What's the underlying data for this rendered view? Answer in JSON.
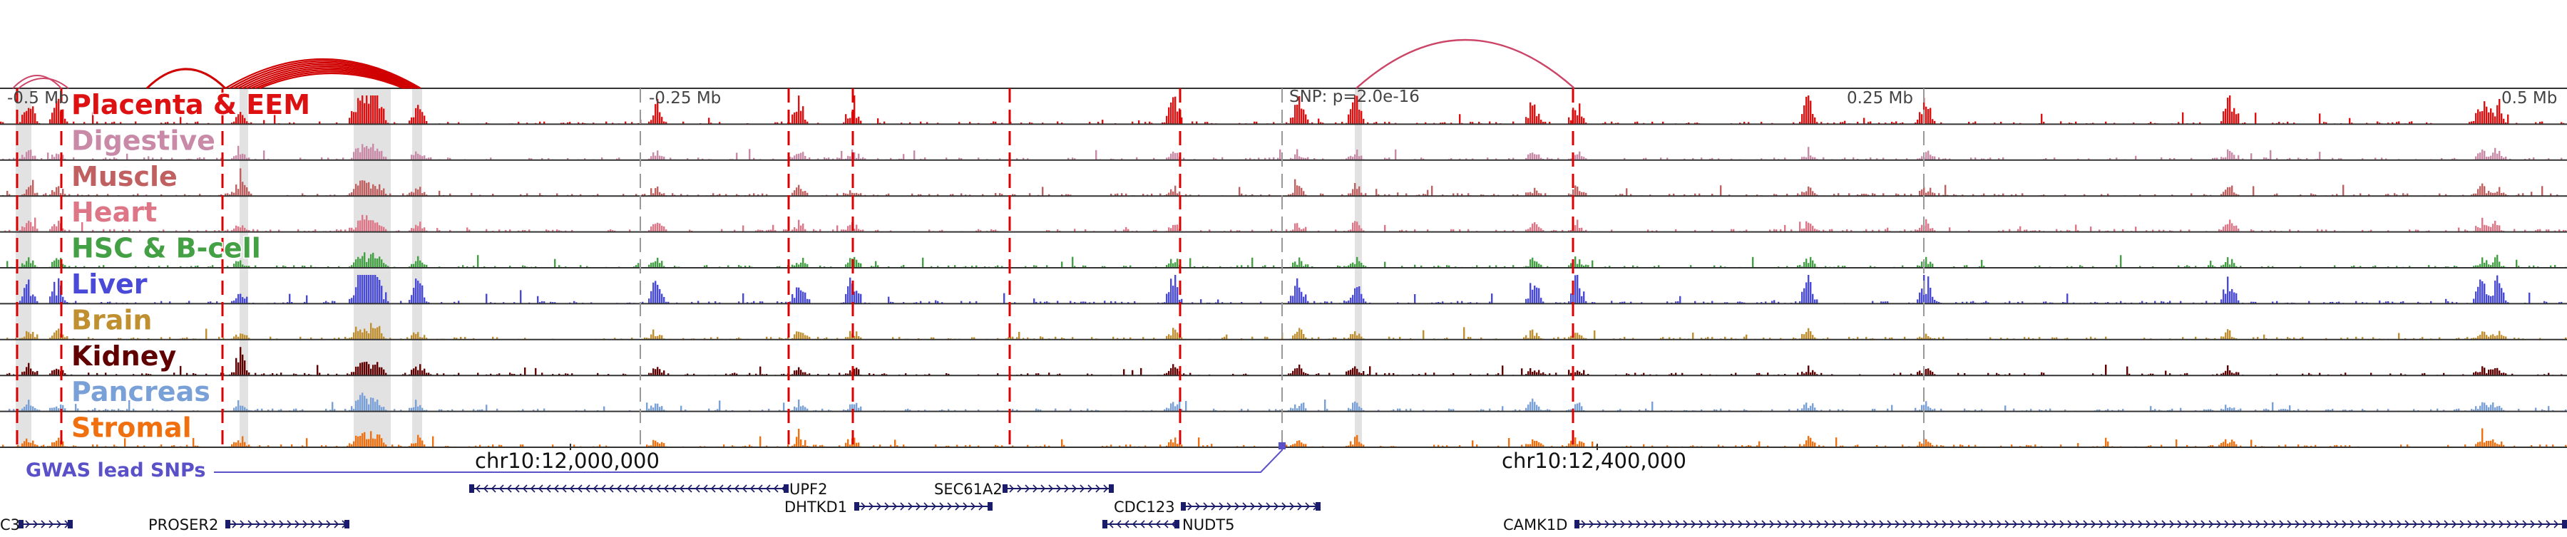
{
  "colors": {
    "line": "#333333",
    "dashed": "#dd0000",
    "dashed_gray": "#999999",
    "highlight": "#d8d8d8",
    "gwas": "#5a50c8",
    "gene": "#1b1b6b",
    "loop": "#d00000",
    "loop_light": "#cc4466"
  },
  "tracks": [
    {
      "name": "Placenta & EEM",
      "color": "#dd1111"
    },
    {
      "name": "Digestive",
      "color": "#c98aa8"
    },
    {
      "name": "Muscle",
      "color": "#c06060"
    },
    {
      "name": "Heart",
      "color": "#dd7788"
    },
    {
      "name": "HSC & B-cell",
      "color": "#44a044"
    },
    {
      "name": "Liver",
      "color": "#4a4ad8"
    },
    {
      "name": "Brain",
      "color": "#c09030"
    },
    {
      "name": "Kidney",
      "color": "#600000"
    },
    {
      "name": "Pancreas",
      "color": "#7aa0d8"
    },
    {
      "name": "Stromal",
      "color": "#f07010"
    }
  ],
  "offset_labels": [
    "-0.5 Mb",
    "-0.25 Mb",
    "0.25 Mb",
    "0.5 Mb"
  ],
  "snp_label": "SNP: p=2.0e-16",
  "coordinates": [
    "chr10:12,000,000",
    "chr10:12,400,000"
  ],
  "gwas_label": "GWAS lead SNPs",
  "genes": [
    "C3",
    "PROSER2",
    "UPF2",
    "DHTKD1",
    "SEC61A2",
    "CDC123",
    "NUDT5",
    "CAMK1D"
  ]
}
